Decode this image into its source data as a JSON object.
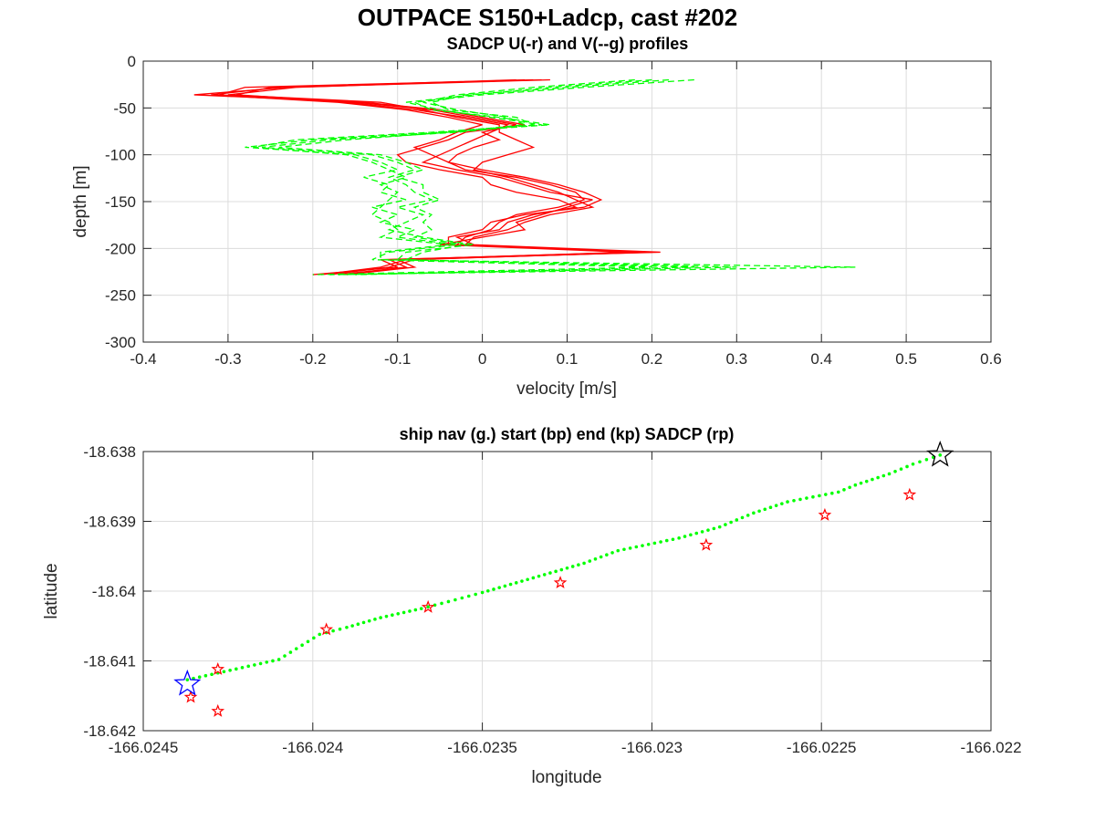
{
  "figure": {
    "title": "OUTPACE S150+Ladcp, cast #202"
  },
  "chart_data": [
    {
      "type": "line",
      "title": "SADCP U(-r) and V(--g) profiles",
      "xlabel": "velocity [m/s]",
      "ylabel": "depth [m]",
      "xlim": [
        -0.4,
        0.6
      ],
      "ylim": [
        -300,
        0
      ],
      "xticks": [
        -0.4,
        -0.3,
        -0.2,
        -0.1,
        0,
        0.1,
        0.2,
        0.3,
        0.4,
        0.5,
        0.6
      ],
      "yticks": [
        0,
        -50,
        -100,
        -150,
        -200,
        -250,
        -300
      ],
      "xtick_labels": [
        "-0.4",
        "-0.3",
        "-0.2",
        "-0.1",
        "0",
        "0.1",
        "0.2",
        "0.3",
        "0.4",
        "0.5",
        "0.6"
      ],
      "ytick_labels": [
        "0",
        "-50",
        "-100",
        "-150",
        "-200",
        "-250",
        "-300"
      ],
      "grid": true,
      "depths": [
        -20,
        -28,
        -36,
        -44,
        -52,
        -60,
        -68,
        -76,
        -84,
        -92,
        -100,
        -108,
        -116,
        -124,
        -132,
        -140,
        -148,
        -156,
        -164,
        -172,
        -180,
        -188,
        -196,
        -204,
        -212,
        -220,
        -228
      ],
      "series": [
        {
          "name": "U",
          "color": "#ff0000",
          "style": "solid",
          "values": [
            0.08,
            -0.23,
            -0.34,
            -0.14,
            -0.05,
            0.0,
            0.05,
            -0.02,
            -0.04,
            -0.07,
            -0.1,
            -0.09,
            -0.05,
            0.0,
            0.01,
            0.04,
            0.09,
            0.11,
            0.06,
            0.03,
            0.02,
            -0.03,
            -0.01,
            0.21,
            -0.12,
            -0.1,
            -0.2
          ]
        },
        {
          "name": "U",
          "color": "#ff0000",
          "style": "solid",
          "values": [
            0.06,
            -0.28,
            -0.31,
            -0.16,
            -0.08,
            -0.02,
            0.03,
            0.01,
            -0.01,
            -0.03,
            -0.05,
            -0.07,
            -0.03,
            0.02,
            0.05,
            0.08,
            0.13,
            0.1,
            0.07,
            0.04,
            0.05,
            0.0,
            -0.05,
            0.17,
            -0.1,
            -0.08,
            -0.16
          ]
        },
        {
          "name": "U",
          "color": "#ff0000",
          "style": "solid",
          "values": [
            0.07,
            -0.25,
            -0.29,
            -0.15,
            -0.06,
            -0.01,
            0.04,
            0.0,
            0.02,
            -0.01,
            -0.03,
            -0.04,
            -0.02,
            0.04,
            0.08,
            0.11,
            0.12,
            0.09,
            0.04,
            0.02,
            0.01,
            -0.02,
            -0.03,
            0.19,
            -0.08,
            -0.11,
            -0.18
          ]
        },
        {
          "name": "U",
          "color": "#ff0000",
          "style": "solid",
          "values": [
            0.05,
            -0.22,
            -0.3,
            -0.12,
            -0.07,
            -0.03,
            0.02,
            0.02,
            0.04,
            0.06,
            0.03,
            0.0,
            -0.01,
            0.03,
            0.06,
            0.09,
            0.11,
            0.13,
            0.08,
            0.05,
            0.03,
            -0.01,
            -0.02,
            0.18,
            -0.11,
            -0.09,
            -0.17
          ]
        },
        {
          "name": "U",
          "color": "#ff0000",
          "style": "solid",
          "values": [
            0.04,
            -0.24,
            -0.32,
            -0.17,
            -0.09,
            -0.04,
            0.0,
            -0.03,
            -0.05,
            -0.08,
            -0.06,
            -0.04,
            0.0,
            0.05,
            0.09,
            0.12,
            0.14,
            0.12,
            0.05,
            0.01,
            0.0,
            -0.04,
            -0.04,
            0.2,
            -0.09,
            -0.12,
            -0.19
          ]
        },
        {
          "name": "V",
          "color": "#00ff00",
          "style": "dashed",
          "values": [
            0.25,
            0.12,
            0.0,
            -0.08,
            -0.06,
            0.02,
            0.08,
            -0.05,
            -0.2,
            -0.28,
            -0.15,
            -0.12,
            -0.1,
            -0.14,
            -0.11,
            -0.12,
            -0.09,
            -0.13,
            -0.1,
            -0.12,
            -0.08,
            -0.1,
            -0.03,
            -0.11,
            -0.13,
            0.2,
            -0.2
          ]
        },
        {
          "name": "V",
          "color": "#00ff00",
          "style": "dashed",
          "values": [
            0.22,
            0.1,
            -0.02,
            -0.06,
            -0.04,
            0.04,
            0.06,
            -0.03,
            -0.18,
            -0.26,
            -0.13,
            -0.1,
            -0.08,
            -0.11,
            -0.09,
            -0.08,
            -0.06,
            -0.1,
            -0.07,
            -0.09,
            -0.11,
            -0.07,
            -0.01,
            -0.09,
            -0.1,
            0.3,
            -0.17
          ]
        },
        {
          "name": "V",
          "color": "#00ff00",
          "style": "dashed",
          "values": [
            0.2,
            0.08,
            -0.01,
            -0.09,
            -0.05,
            0.01,
            0.07,
            -0.06,
            -0.22,
            -0.27,
            -0.16,
            -0.13,
            -0.11,
            -0.09,
            -0.12,
            -0.1,
            -0.11,
            -0.12,
            -0.13,
            -0.11,
            -0.1,
            -0.12,
            -0.04,
            -0.12,
            -0.12,
            0.44,
            -0.18
          ]
        },
        {
          "name": "V",
          "color": "#00ff00",
          "style": "dashed",
          "values": [
            0.18,
            0.06,
            -0.03,
            -0.07,
            -0.03,
            0.03,
            0.05,
            -0.04,
            -0.16,
            -0.24,
            -0.12,
            -0.09,
            -0.07,
            -0.1,
            -0.07,
            -0.07,
            -0.05,
            -0.08,
            -0.06,
            -0.07,
            -0.06,
            -0.08,
            -0.02,
            -0.07,
            -0.09,
            0.25,
            -0.15
          ]
        }
      ]
    },
    {
      "type": "scatter",
      "title": "ship nav (g.) start (bp) end (kp) SADCP (rp)",
      "xlabel": "longitude",
      "ylabel": "latitude",
      "xlim": [
        -166.0245,
        -166.022
      ],
      "ylim": [
        -18.642,
        -18.638
      ],
      "xticks": [
        -166.0245,
        -166.024,
        -166.0235,
        -166.023,
        -166.0225,
        -166.022
      ],
      "yticks": [
        -18.638,
        -18.639,
        -18.64,
        -18.641,
        -18.642
      ],
      "xtick_labels": [
        "-166.0245",
        "-166.024",
        "-166.0235",
        "-166.023",
        "-166.0225",
        "-166.022"
      ],
      "ytick_labels": [
        "-18.638",
        "-18.639",
        "-18.64",
        "-18.641",
        "-18.642"
      ],
      "grid": true,
      "ship_nav": {
        "color": "#00ff00",
        "x": [
          -166.02437,
          -166.0241,
          -166.02398,
          -166.0239,
          -166.0238,
          -166.02368,
          -166.0236,
          -166.0235,
          -166.0234,
          -166.0233,
          -166.0232,
          -166.0231,
          -166.02292,
          -166.0228,
          -166.0227,
          -166.0226,
          -166.02245,
          -166.0224,
          -166.0223,
          -166.02223,
          -166.02215
        ],
        "y": [
          -18.64127,
          -18.64098,
          -18.64062,
          -18.64052,
          -18.64038,
          -18.64025,
          -18.64015,
          -18.64002,
          -18.63988,
          -18.63974,
          -18.6396,
          -18.63942,
          -18.63924,
          -18.63908,
          -18.63888,
          -18.63872,
          -18.63858,
          -18.63848,
          -18.63832,
          -18.63818,
          -18.63805
        ]
      },
      "start": {
        "color": "#0000ff",
        "x": -166.02437,
        "y": -18.64133
      },
      "end": {
        "color": "#000000",
        "x": -166.02215,
        "y": -18.63805
      },
      "sadcp": {
        "color": "#ff0000",
        "x": [
          -166.02436,
          -166.02428,
          -166.02428,
          -166.02396,
          -166.02366,
          -166.02327,
          -166.02284,
          -166.02249,
          -166.02224
        ],
        "y": [
          -18.64152,
          -18.64172,
          -18.64112,
          -18.64055,
          -18.64023,
          -18.63988,
          -18.63934,
          -18.63891,
          -18.63862
        ]
      }
    }
  ]
}
